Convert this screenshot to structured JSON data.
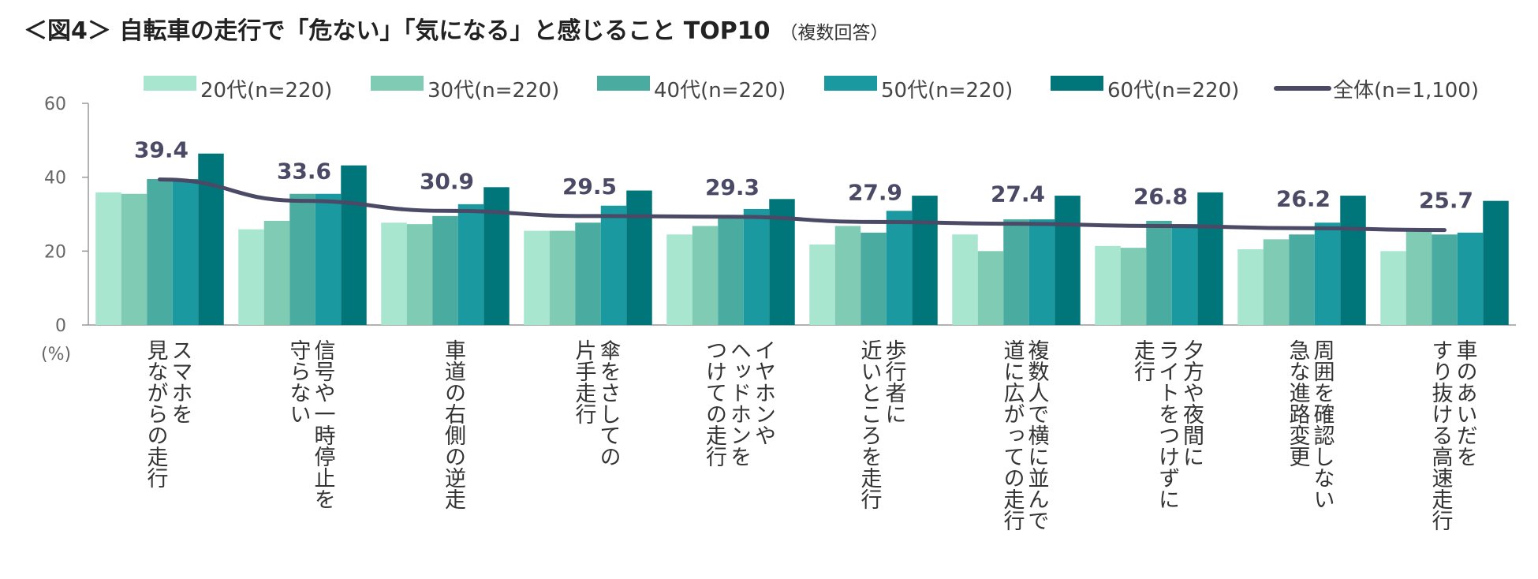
{
  "title": "＜図4＞ 自転車の走行で「危ない」「気になる」と感じること TOP10",
  "subtitle": "（複数回答）",
  "chart_data": {
    "type": "bar",
    "title": "＜図4＞ 自転車の走行で「危ない」「気になる」と感じること TOP10",
    "subtitle": "（複数回答）",
    "ylabel": "(%)",
    "ylim": [
      0,
      60
    ],
    "yticks": [
      0,
      20,
      40,
      60
    ],
    "legend_position": "top",
    "categories": [
      [
        "スマホを",
        "見ながらの走行"
      ],
      [
        "信号や一時停止を",
        "守らない"
      ],
      [
        "車道の右側の逆走"
      ],
      [
        "傘をさしての",
        "片手走行"
      ],
      [
        "イヤホンや",
        "ヘッドホンを",
        "つけての走行"
      ],
      [
        "歩行者に",
        "近いところを走行"
      ],
      [
        "複数人で横に並んで",
        "道に広がっての走行"
      ],
      [
        "夕方や夜間に",
        "ライトをつけずに",
        "走行"
      ],
      [
        "周囲を確認しない",
        "急な進路変更"
      ],
      [
        "車のあいだを",
        "すり抜ける高速走行"
      ]
    ],
    "series": [
      {
        "name": "20代(n=220)",
        "color": "#a8e6d0",
        "values": [
          35.9,
          25.9,
          27.7,
          25.5,
          24.5,
          21.8,
          24.5,
          21.4,
          20.5,
          20.0
        ]
      },
      {
        "name": "30代(n=220)",
        "color": "#80cbb4",
        "values": [
          35.5,
          28.2,
          27.3,
          25.5,
          26.8,
          26.8,
          20.0,
          20.9,
          23.2,
          25.5
        ]
      },
      {
        "name": "40代(n=220)",
        "color": "#4aaba0",
        "values": [
          39.5,
          35.5,
          29.5,
          27.7,
          29.1,
          25.0,
          28.6,
          28.2,
          24.5,
          24.5
        ]
      },
      {
        "name": "50代(n=220)",
        "color": "#1a9aa0",
        "values": [
          39.5,
          35.5,
          32.7,
          32.3,
          31.4,
          30.9,
          28.6,
          27.3,
          27.7,
          25.0
        ]
      },
      {
        "name": "60代(n=220)",
        "color": "#00767a",
        "values": [
          46.4,
          43.2,
          37.3,
          36.4,
          34.1,
          35.0,
          35.0,
          35.9,
          35.0,
          33.6
        ]
      }
    ],
    "total": {
      "name": "全体(n=1,100)",
      "color": "#4a4a66",
      "values": [
        39.4,
        33.6,
        30.9,
        29.5,
        29.3,
        27.9,
        27.4,
        26.8,
        26.2,
        25.7
      ],
      "labels": [
        "39.4",
        "33.6",
        "30.9",
        "29.5",
        "29.3",
        "27.9",
        "27.4",
        "26.8",
        "26.2",
        "25.7"
      ]
    }
  }
}
